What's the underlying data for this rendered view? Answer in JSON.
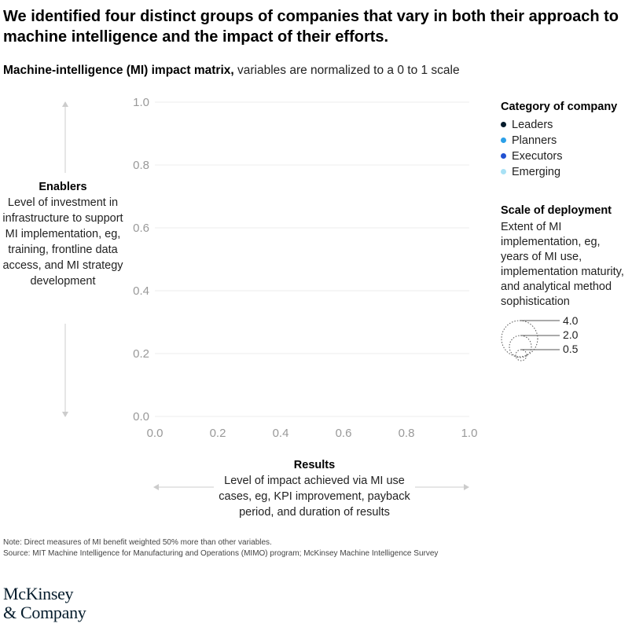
{
  "title": "We identified four distinct groups of companies that vary in both their approach to machine intelligence and the impact of their efforts.",
  "subtitle_bold": "Machine-intelligence (MI) impact matrix,",
  "subtitle_rest": " variables are normalized to a 0 to 1 scale",
  "y_axis": {
    "heading": "Enablers",
    "description": "Level of investment in infrastructure to support MI implementation, eg, training, frontline data access, and MI strategy development"
  },
  "x_axis": {
    "heading": "Results",
    "description": "Level of impact achieved via MI use cases, eg, KPI improvement, payback period, and duration of results"
  },
  "legend": {
    "title": "Category of company",
    "items": [
      {
        "label": "Leaders",
        "color": "#051c2c"
      },
      {
        "label": "Planners",
        "color": "#2ca0e8"
      },
      {
        "label": "Executors",
        "color": "#2251d1"
      },
      {
        "label": "Emerging",
        "color": "#a8e1f5"
      }
    ]
  },
  "scale": {
    "title": "Scale of deployment",
    "description": "Extent of MI implementation, eg, years of MI use, implementation maturity, and analytical method sophistication",
    "sizes": [
      "4.0",
      "2.0",
      "0.5"
    ]
  },
  "note": "Note: Direct measures of MI benefit weighted 50% more than other variables.",
  "source": "Source: MIT Machine Intelligence for Manufacturing and Operations (MIMO) program; McKinsey Machine Intelligence Survey",
  "logo": {
    "line1": "McKinsey",
    "line2": "& Company"
  },
  "chart_data": {
    "type": "scatter",
    "title": "Machine-intelligence (MI) impact matrix",
    "xlabel": "Results",
    "ylabel": "Enablers",
    "xlim": [
      0,
      1
    ],
    "ylim": [
      0,
      1
    ],
    "x_ticks": [
      "0.0",
      "0.2",
      "0.4",
      "0.6",
      "0.8",
      "1.0"
    ],
    "y_ticks": [
      "0.0",
      "0.2",
      "0.4",
      "0.6",
      "0.8",
      "1.0"
    ],
    "grid": true,
    "legend_position": "right",
    "series": []
  }
}
